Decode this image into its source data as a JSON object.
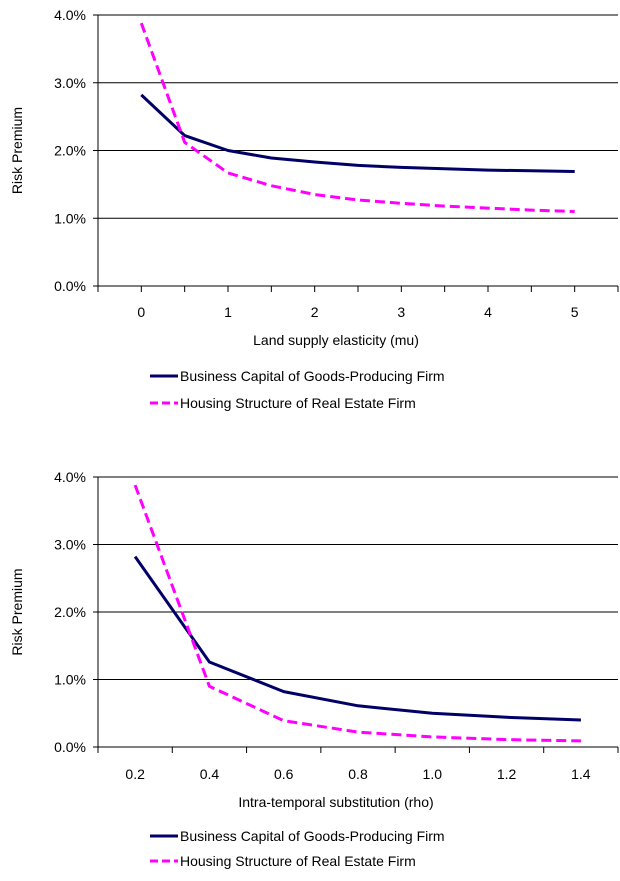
{
  "colors": {
    "business": "#000066",
    "housing": "#ff00ff",
    "grid": "#000000",
    "axis": "#000000"
  },
  "chart_data": [
    {
      "type": "line",
      "title": "",
      "xlabel": "Land supply elasticity (mu)",
      "ylabel": "Risk Premium",
      "ylim": [
        0,
        0.04
      ],
      "grid": "horizontal",
      "legend": "below",
      "x_ticks": [
        "0",
        "1",
        "2",
        "3",
        "4",
        "5"
      ],
      "y_ticks": [
        "0.0%",
        "1.0%",
        "2.0%",
        "3.0%",
        "4.0%"
      ],
      "x": [
        0,
        0.5,
        1,
        1.5,
        2,
        2.5,
        3,
        3.5,
        4,
        4.5,
        5
      ],
      "series": [
        {
          "name": "Business Capital of Goods-Producing Firm",
          "style": "solid",
          "values": [
            0.0282,
            0.0222,
            0.02,
            0.0189,
            0.0183,
            0.0178,
            0.0175,
            0.0173,
            0.0171,
            0.017,
            0.0169
          ]
        },
        {
          "name": "Housing Structure of Real Estate Firm",
          "style": "dashed",
          "values": [
            0.0388,
            0.0212,
            0.0167,
            0.0148,
            0.0135,
            0.0127,
            0.0122,
            0.0118,
            0.0115,
            0.0112,
            0.011
          ]
        }
      ]
    },
    {
      "type": "line",
      "title": "",
      "xlabel": "Intra-temporal substitution (rho)",
      "ylabel": "Risk Premium",
      "ylim": [
        0,
        0.04
      ],
      "grid": "horizontal",
      "legend": "below",
      "x_ticks": [
        "0.2",
        "0.4",
        "0.6",
        "0.8",
        "1.0",
        "1.2",
        "1.4"
      ],
      "y_ticks": [
        "0.0%",
        "1.0%",
        "2.0%",
        "3.0%",
        "4.0%"
      ],
      "x": [
        0.2,
        0.4,
        0.6,
        0.8,
        1.0,
        1.2,
        1.4
      ],
      "series": [
        {
          "name": "Business Capital of Goods-Producing Firm",
          "style": "solid",
          "values": [
            0.0282,
            0.0126,
            0.0082,
            0.0061,
            0.005,
            0.0044,
            0.004
          ]
        },
        {
          "name": "Housing Structure of Real Estate Firm",
          "style": "dashed",
          "values": [
            0.0388,
            0.009,
            0.0039,
            0.0022,
            0.0015,
            0.0011,
            0.0009
          ]
        }
      ]
    }
  ]
}
